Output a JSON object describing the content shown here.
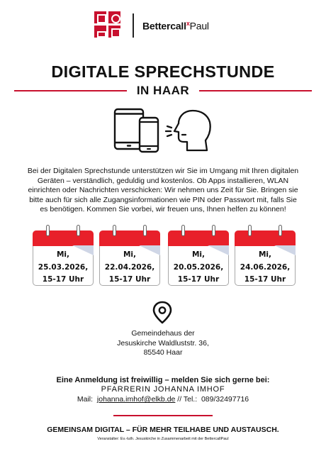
{
  "brand": {
    "name_bold": "Bettercall",
    "name_x": "x",
    "name_regular": "Paul"
  },
  "title": "DIGITALE SPRECHSTUNDE",
  "subtitle": "IN HAAR",
  "intro": "Bei der Digitalen Sprechstunde unterstützen wir Sie im Umgang mit Ihren digitalen Geräten – verständlich, geduldig und kostenlos. Ob Apps installieren, WLAN einrichten oder Nachrichten verschicken: Wir nehmen uns Zeit für Sie. Bringen sie bitte auch für sich alle Zugangsinformationen wie PIN oder Passwort mit, falls Sie es benötigen. Kommen Sie vorbei, wir freuen uns, Ihnen helfen zu können!",
  "dates": [
    {
      "day": "Mi,",
      "date": "25.03.2026,",
      "time": "15-17 Uhr"
    },
    {
      "day": "Mi,",
      "date": "22.04.2026,",
      "time": "15-17 Uhr"
    },
    {
      "day": "Mi,",
      "date": "20.05.2026,",
      "time": "15-17 Uhr"
    },
    {
      "day": "Mi,",
      "date": "24.06.2026,",
      "time": "15-17 Uhr"
    }
  ],
  "location": {
    "line1": "Gemeindehaus der",
    "line2": "Jesuskirche Waldluststr. 36,",
    "line3": "85540 Haar"
  },
  "registration": {
    "title": "Eine Anmeldung ist freiwillig – melden Sie sich gerne bei:",
    "pastor": "PFARRERIN JOHANNA IMHOF",
    "mail_label": "Mail:",
    "mail": "johanna.imhof@elkb.de",
    "tel_label": "// Tel.:",
    "tel": "089/32497716"
  },
  "footer": {
    "slogan": "GEMEINSAM DIGITAL – FÜR MEHR TEILHABE UND AUSTAUSCH.",
    "organizer": "Veranstalter: Ev.-luth. Jesuskirche in Zusammenarbeit mit der BettercallPaul"
  },
  "colors": {
    "accent": "#c8102e",
    "calendar_header": "#e8202a",
    "text": "#111111"
  },
  "icons": [
    "bettercallpaul-logo-icon",
    "tablet-icon",
    "smartphone-icon",
    "speaking-head-icon",
    "calendar-icon",
    "location-pin-icon"
  ]
}
